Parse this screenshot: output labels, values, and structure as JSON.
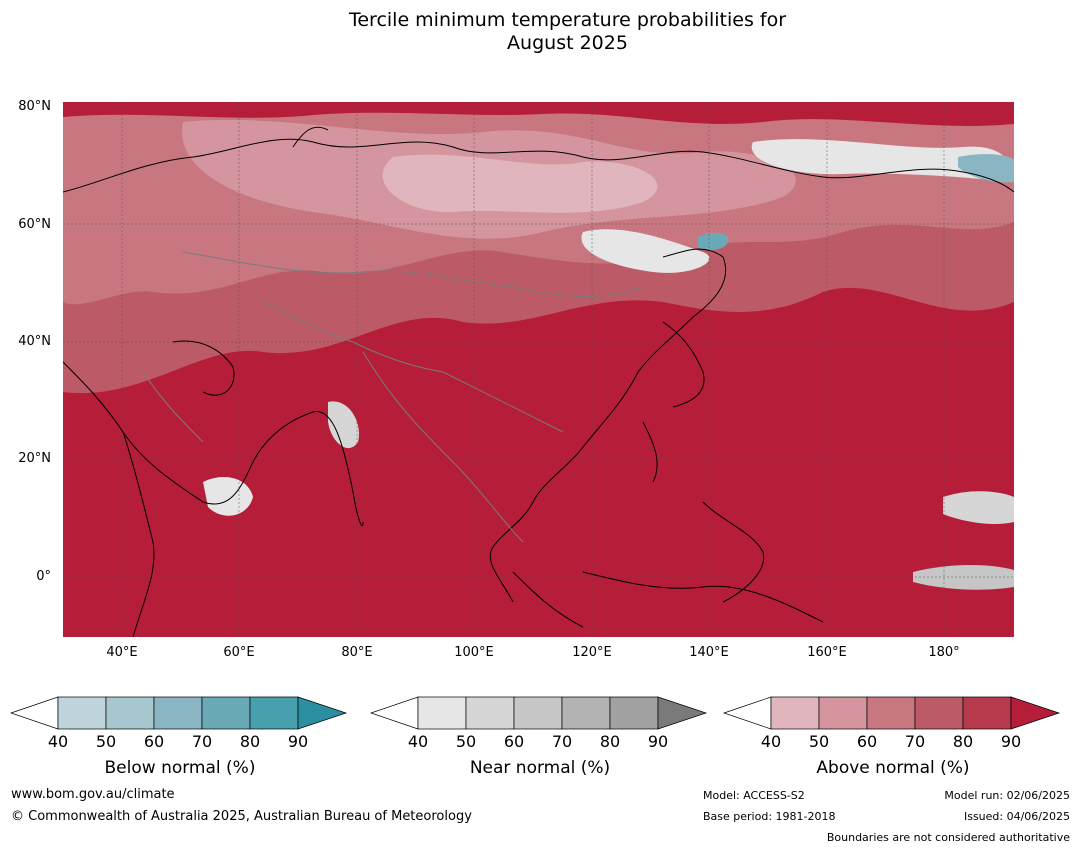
{
  "title": {
    "line1": "Tercile minimum temperature probabilities for",
    "line2": "August 2025"
  },
  "map": {
    "region": "Asia",
    "lat_labels": [
      "80°N",
      "60°N",
      "40°N",
      "20°N",
      "0°"
    ],
    "lon_labels": [
      "40°E",
      "60°E",
      "80°E",
      "100°E",
      "120°E",
      "140°E",
      "160°E",
      "180°"
    ],
    "dominant_category": "Above normal",
    "dominant_color": "#b51d38"
  },
  "colorbars": [
    {
      "label": "Below normal (%)",
      "ticks": [
        "40",
        "50",
        "60",
        "70",
        "80",
        "90"
      ],
      "colors": [
        "#ffffff",
        "#bfd4dc",
        "#a7c7cf",
        "#8ab5c2",
        "#6aaab7",
        "#489fae",
        "#2b8fa1"
      ]
    },
    {
      "label": "Near normal (%)",
      "ticks": [
        "40",
        "50",
        "60",
        "70",
        "80",
        "90"
      ],
      "colors": [
        "#ffffff",
        "#e6e6e6",
        "#d6d6d6",
        "#c6c6c6",
        "#b3b3b3",
        "#a1a1a1",
        "#7a7a7a"
      ]
    },
    {
      "label": "Above normal (%)",
      "ticks": [
        "40",
        "50",
        "60",
        "70",
        "80",
        "90"
      ],
      "colors": [
        "#ffffff",
        "#e0b5bd",
        "#d4959f",
        "#c87780",
        "#bd5a67",
        "#b83b4d",
        "#b51d38"
      ]
    }
  ],
  "footer": {
    "website": "www.bom.gov.au/climate",
    "copyright": "© Commonwealth of Australia 2025, Australian Bureau of Meteorology",
    "model": "Model: ACCESS-S2",
    "base_period": "Base period: 1981-2018",
    "model_run": "Model run: 02/06/2025",
    "issued": "Issued: 04/06/2025",
    "disclaimer": "Boundaries are not considered authoritative"
  }
}
